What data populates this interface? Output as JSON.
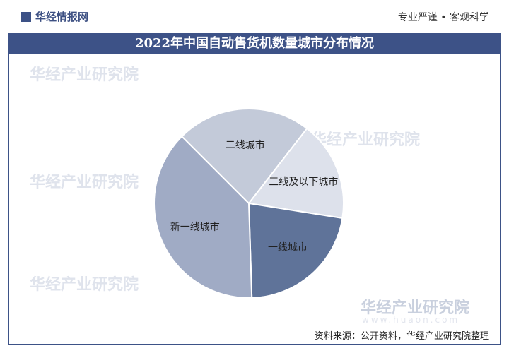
{
  "header": {
    "logo": "华经情报网",
    "slogan": "专业严谨 • 客观科学"
  },
  "chart_data": {
    "type": "pie",
    "title": "2022年中国自动售货机数量城市分布情况",
    "categories": [
      "二线城市",
      "三线及以下城市",
      "一线城市",
      "新一线城市"
    ],
    "values": [
      23,
      17,
      22,
      38
    ],
    "colors": [
      "#c3cad9",
      "#dde1eb",
      "#5f7399",
      "#a0abc5"
    ]
  },
  "watermark": {
    "name": "华经产业研究院",
    "url": "www.huaon.com"
  },
  "footer": {
    "source": "资料来源：公开资料，华经产业研究院整理"
  }
}
